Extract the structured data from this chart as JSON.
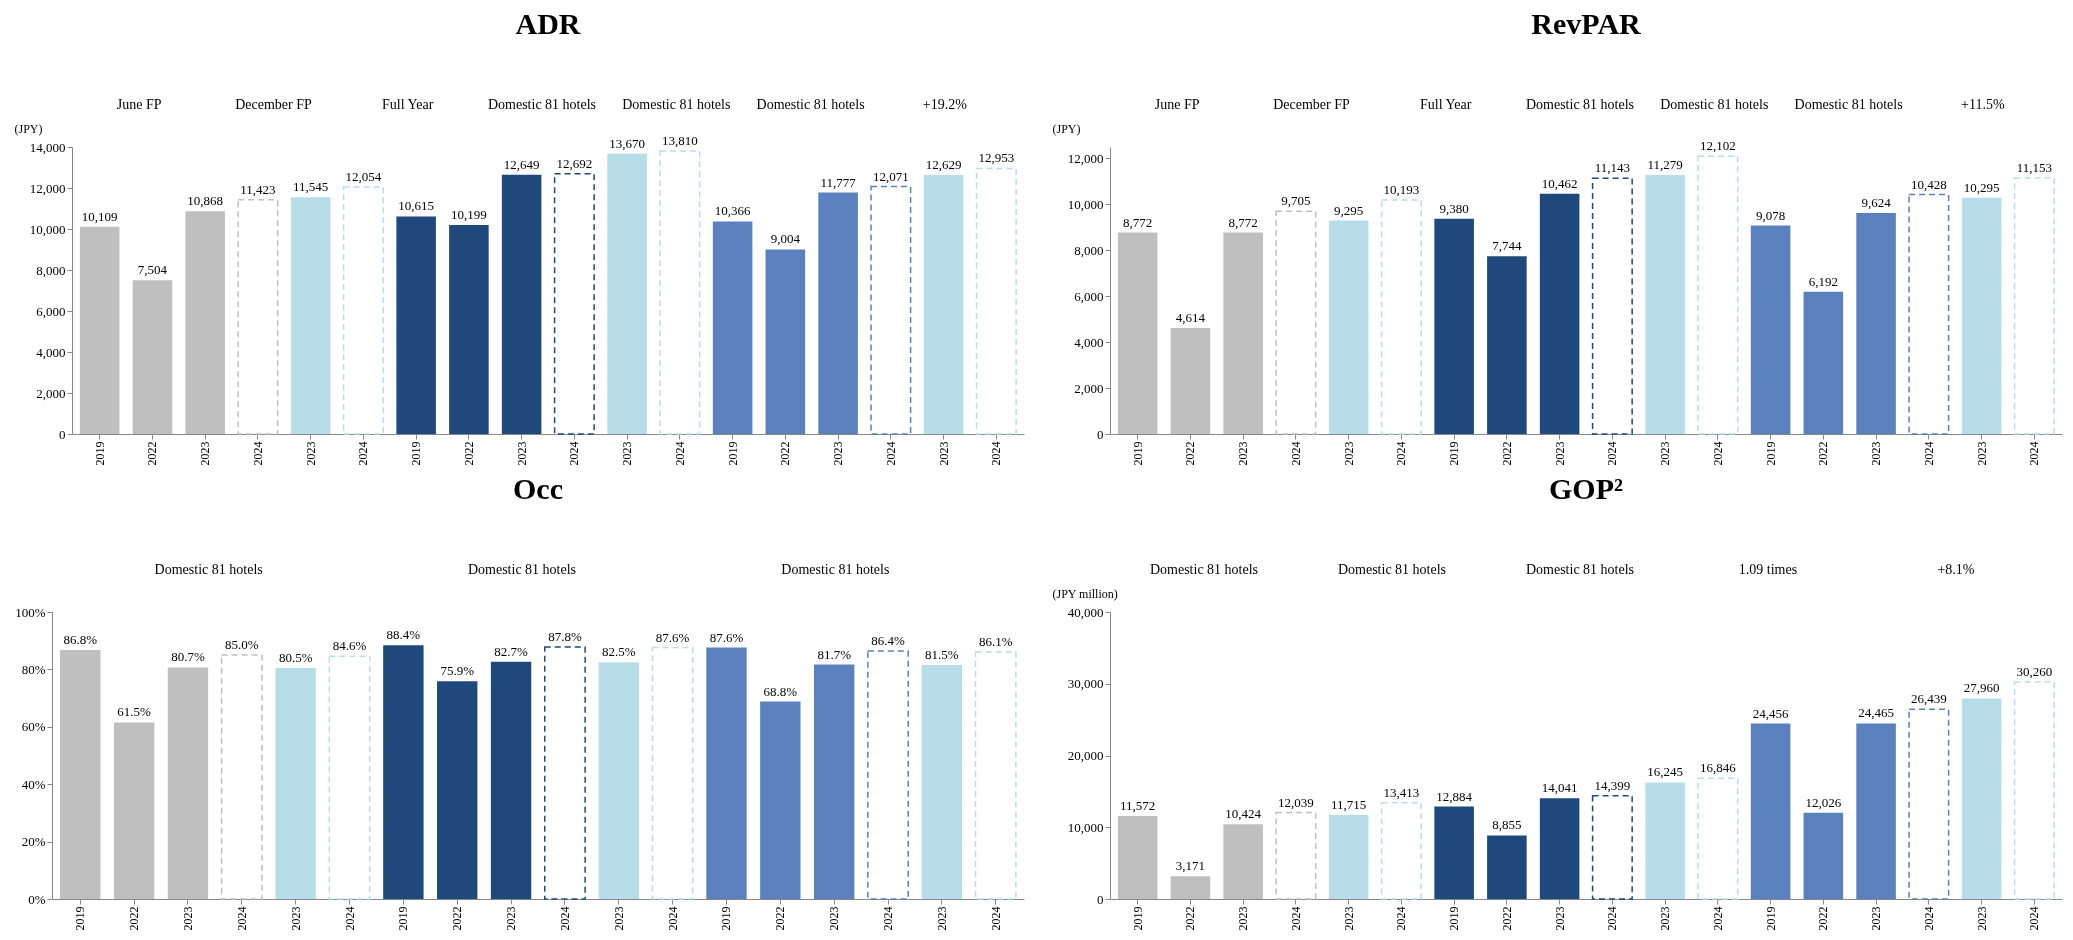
{
  "chart_data": [
    {
      "type": "bar",
      "title": "ADR",
      "ylabel": "(JPY)",
      "ylim": [
        0,
        14000
      ],
      "yticks": [
        {
          "value": 0,
          "label": "0"
        },
        {
          "value": 2000,
          "label": "2,000"
        },
        {
          "value": 4000,
          "label": "4,000"
        },
        {
          "value": 6000,
          "label": "6,000"
        },
        {
          "value": 8000,
          "label": "8,000"
        },
        {
          "value": 10000,
          "label": "10,000"
        },
        {
          "value": 12000,
          "label": "12,000"
        },
        {
          "value": 14000,
          "label": "14,000"
        }
      ],
      "grid": false,
      "annotations": [
        "June FP",
        "December FP",
        "Full Year",
        "Domestic 81 hotels",
        "Domestic 81 hotels",
        "Domestic 81 hotels",
        "+19.2%"
      ],
      "categories": [
        "2019",
        "2022",
        "2023",
        "2024",
        "2023",
        "2024",
        "2019",
        "2022",
        "2023",
        "2024",
        "2023",
        "2024",
        "2019",
        "2022",
        "2023",
        "2024",
        "2023",
        "2024"
      ],
      "series": [
        {
          "values": [
            10109,
            7504,
            10868,
            null,
            11545,
            null,
            10615,
            10199,
            12649,
            null,
            13670,
            null,
            10366,
            9004,
            11777,
            null,
            12629,
            null
          ],
          "value_labels": [
            "10,109",
            "7,504",
            "10,868",
            null,
            "11,545",
            null,
            "10,615",
            "10,199",
            "12,649",
            null,
            "13,670",
            null,
            "10,366",
            "9,004",
            "11,777",
            null,
            "12,629",
            null
          ],
          "colors": [
            "#bfbfbf",
            "#bfbfbf",
            "#bfbfbf",
            null,
            "#b7dde8",
            null,
            "#1f497d",
            "#1f497d",
            "#1f497d",
            null,
            "#b7dde8",
            null,
            "#5a80bd",
            "#5a80bd",
            "#5a80bd",
            null,
            "#b7dde8",
            null
          ]
        },
        {
          "values": [
            null,
            null,
            null,
            11423,
            null,
            12054,
            null,
            null,
            null,
            12692,
            null,
            13810,
            null,
            null,
            null,
            12071,
            null,
            12953
          ],
          "value_labels": [
            null,
            null,
            null,
            "11,423",
            null,
            "12,054",
            null,
            null,
            null,
            "12,692",
            null,
            "13,810",
            null,
            null,
            null,
            "12,071",
            null,
            "12,953"
          ],
          "line_style": "dashed",
          "colors": [
            null,
            null,
            null,
            "#bfbfbf",
            null,
            "#b7dde8",
            null,
            null,
            null,
            "#1f497d",
            null,
            "#b7dde8",
            null,
            null,
            null,
            "#5a80bd",
            null,
            "#b7dde8"
          ]
        }
      ]
    },
    {
      "type": "bar",
      "title": "RevPAR",
      "ylabel": "(JPY)",
      "ylim": [
        0,
        12500
      ],
      "yticks": [
        {
          "value": 0,
          "label": "0"
        },
        {
          "value": 2000,
          "label": "2,000"
        },
        {
          "value": 4000,
          "label": "4,000"
        },
        {
          "value": 6000,
          "label": "6,000"
        },
        {
          "value": 8000,
          "label": "8,000"
        },
        {
          "value": 10000,
          "label": "10,000"
        },
        {
          "value": 12000,
          "label": "12,000"
        }
      ],
      "grid": false,
      "annotations": [
        "June FP",
        "December FP",
        "Full Year",
        "Domestic 81 hotels",
        "Domestic 81 hotels",
        "Domestic 81 hotels",
        "+11.5%"
      ],
      "categories": [
        "2019",
        "2022",
        "2023",
        "2024",
        "2023",
        "2024",
        "2019",
        "2022",
        "2023",
        "2024",
        "2023",
        "2024",
        "2019",
        "2022",
        "2023",
        "2024",
        "2023",
        "2024"
      ],
      "series": [
        {
          "values": [
            8772,
            4614,
            8772,
            null,
            9295,
            null,
            9380,
            7744,
            10462,
            null,
            11279,
            null,
            9078,
            6192,
            9624,
            null,
            10295,
            null
          ],
          "value_labels": [
            "8,772",
            "4,614",
            "8,772",
            null,
            "9,295",
            null,
            "9,380",
            "7,744",
            "10,462",
            null,
            "11,279",
            null,
            "9,078",
            "6,192",
            "9,624",
            null,
            "10,295",
            null
          ],
          "colors": [
            "#bfbfbf",
            "#bfbfbf",
            "#bfbfbf",
            null,
            "#b7dde8",
            null,
            "#1f497d",
            "#1f497d",
            "#1f497d",
            null,
            "#b7dde8",
            null,
            "#5a80bd",
            "#5a80bd",
            "#5a80bd",
            null,
            "#b7dde8",
            null
          ]
        },
        {
          "values": [
            null,
            null,
            null,
            9705,
            null,
            10193,
            null,
            null,
            null,
            11143,
            null,
            12102,
            null,
            null,
            null,
            10428,
            null,
            11153
          ],
          "value_labels": [
            null,
            null,
            null,
            "9,705",
            null,
            "10,193",
            null,
            null,
            null,
            "11,143",
            null,
            "12,102",
            null,
            null,
            null,
            "10,428",
            null,
            "11,153"
          ],
          "line_style": "dashed",
          "colors": [
            null,
            null,
            null,
            "#bfbfbf",
            null,
            "#b7dde8",
            null,
            null,
            null,
            "#1f497d",
            null,
            "#b7dde8",
            null,
            null,
            null,
            "#5a80bd",
            null,
            "#b7dde8"
          ]
        }
      ]
    },
    {
      "type": "bar",
      "title": "Occ",
      "ylim": [
        0,
        100
      ],
      "yticks": [
        {
          "value": 0,
          "label": "0%"
        },
        {
          "value": 20,
          "label": "20%"
        },
        {
          "value": 40,
          "label": "40%"
        },
        {
          "value": 60,
          "label": "60%"
        },
        {
          "value": 80,
          "label": "80%"
        },
        {
          "value": 100,
          "label": "100%"
        }
      ],
      "grid": false,
      "annotations": [
        "Domestic 81 hotels",
        "Domestic 81 hotels",
        "Domestic 81 hotels"
      ],
      "categories": [
        "2019",
        "2022",
        "2023",
        "2024",
        "2023",
        "2024",
        "2019",
        "2022",
        "2023",
        "2024",
        "2023",
        "2024",
        "2019",
        "2022",
        "2023",
        "2024",
        "2023",
        "2024"
      ],
      "series": [
        {
          "values": [
            86.8,
            61.5,
            80.7,
            null,
            80.5,
            null,
            88.4,
            75.9,
            82.7,
            null,
            82.5,
            null,
            87.6,
            68.8,
            81.7,
            null,
            81.5,
            null
          ],
          "value_labels": [
            "86.8%",
            "61.5%",
            "80.7%",
            null,
            "80.5%",
            null,
            "88.4%",
            "75.9%",
            "82.7%",
            null,
            "82.5%",
            null,
            "87.6%",
            "68.8%",
            "81.7%",
            null,
            "81.5%",
            null
          ],
          "colors": [
            "#bfbfbf",
            "#bfbfbf",
            "#bfbfbf",
            null,
            "#b7dde8",
            null,
            "#1f497d",
            "#1f497d",
            "#1f497d",
            null,
            "#b7dde8",
            null,
            "#5a80bd",
            "#5a80bd",
            "#5a80bd",
            null,
            "#b7dde8",
            null
          ]
        },
        {
          "values": [
            null,
            null,
            null,
            85.0,
            null,
            84.6,
            null,
            null,
            null,
            87.8,
            null,
            87.6,
            null,
            null,
            null,
            86.4,
            null,
            86.1
          ],
          "value_labels": [
            null,
            null,
            null,
            "85.0%",
            null,
            "84.6%",
            null,
            null,
            null,
            "87.8%",
            null,
            "87.6%",
            null,
            null,
            null,
            "86.4%",
            null,
            "86.1%"
          ],
          "line_style": "dashed",
          "colors": [
            null,
            null,
            null,
            "#bfbfbf",
            null,
            "#b7dde8",
            null,
            null,
            null,
            "#1f497d",
            null,
            "#b7dde8",
            null,
            null,
            null,
            "#5a80bd",
            null,
            "#b7dde8"
          ]
        }
      ]
    },
    {
      "type": "bar",
      "title": "GOP²",
      "ylabel": "(JPY million)",
      "ylim": [
        0,
        40000
      ],
      "yticks": [
        {
          "value": 0,
          "label": "0"
        },
        {
          "value": 10000,
          "label": "10,000"
        },
        {
          "value": 20000,
          "label": "20,000"
        },
        {
          "value": 30000,
          "label": "30,000"
        },
        {
          "value": 40000,
          "label": "40,000"
        }
      ],
      "grid": false,
      "annotations": [
        "Domestic 81 hotels",
        "Domestic 81 hotels",
        "Domestic 81 hotels",
        "1.09 times",
        "+8.1%"
      ],
      "categories": [
        "2019",
        "2022",
        "2023",
        "2024",
        "2023",
        "2024",
        "2019",
        "2022",
        "2023",
        "2024",
        "2023",
        "2024",
        "2019",
        "2022",
        "2023",
        "2024",
        "2023",
        "2024"
      ],
      "series": [
        {
          "values": [
            11572,
            3171,
            10424,
            null,
            11715,
            null,
            12884,
            8855,
            14041,
            null,
            16245,
            null,
            24456,
            12026,
            24465,
            null,
            27960,
            null
          ],
          "value_labels": [
            "11,572",
            "3,171",
            "10,424",
            null,
            "11,715",
            null,
            "12,884",
            "8,855",
            "14,041",
            null,
            "16,245",
            null,
            "24,456",
            "12,026",
            "24,465",
            null,
            "27,960",
            null
          ],
          "colors": [
            "#bfbfbf",
            "#bfbfbf",
            "#bfbfbf",
            null,
            "#b7dde8",
            null,
            "#1f497d",
            "#1f497d",
            "#1f497d",
            null,
            "#b7dde8",
            null,
            "#5a80bd",
            "#5a80bd",
            "#5a80bd",
            null,
            "#b7dde8",
            null
          ]
        },
        {
          "values": [
            null,
            null,
            null,
            12039,
            null,
            13413,
            null,
            null,
            null,
            14399,
            null,
            16846,
            null,
            null,
            null,
            26439,
            null,
            30260
          ],
          "value_labels": [
            null,
            null,
            null,
            "12,039",
            null,
            "13,413",
            null,
            null,
            null,
            "14,399",
            null,
            "16,846",
            null,
            null,
            null,
            "26,439",
            null,
            "30,260"
          ],
          "line_style": "dashed",
          "colors": [
            null,
            null,
            null,
            "#bfbfbf",
            null,
            "#b7dde8",
            null,
            null,
            null,
            "#1f497d",
            null,
            "#b7dde8",
            null,
            null,
            null,
            "#5a80bd",
            null,
            "#b7dde8"
          ]
        }
      ]
    }
  ]
}
